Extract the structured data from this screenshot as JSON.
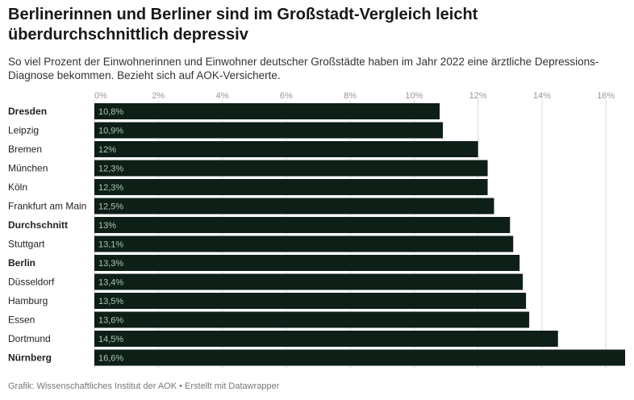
{
  "title": "Berlinerinnen und Berliner sind im Großstadt-Vergleich leicht überdurchschnittlich depressiv",
  "subtitle": "So viel Prozent der Einwohnerinnen und Einwohner deutscher Großstädte haben im Jahr 2022 eine ärztliche Depressions-Diagnose bekommen. Bezieht sich auf AOK-Versicherte.",
  "footer": "Grafik: Wissenschaftliches Institut der AOK • Erstellt mit Datawrapper",
  "colors": {
    "bar": "#0d1f17",
    "value_label": "#a9c8b4",
    "grid": "#d9d9d9",
    "axis_label": "#999999",
    "category_label": "#222222"
  },
  "chart_data": {
    "type": "bar",
    "orientation": "horizontal",
    "categories": [
      "Dresden",
      "Leipzig",
      "Bremen",
      "München",
      "Köln",
      "Frankfurt am Main",
      "Durchschnitt",
      "Stuttgart",
      "Berlin",
      "Düsseldorf",
      "Hamburg",
      "Essen",
      "Dortmund",
      "Nürnberg"
    ],
    "values": [
      10.8,
      10.9,
      12,
      12.3,
      12.3,
      12.5,
      13,
      13.1,
      13.3,
      13.4,
      13.5,
      13.6,
      14.5,
      16.6
    ],
    "value_labels": [
      "10,8%",
      "10,9%",
      "12%",
      "12,3%",
      "12,3%",
      "12,5%",
      "13%",
      "13,1%",
      "13,3%",
      "13,4%",
      "13,5%",
      "13,6%",
      "14,5%",
      "16,6%"
    ],
    "bold_categories": [
      "Dresden",
      "Durchschnitt",
      "Berlin",
      "Nürnberg"
    ],
    "xlim": [
      0,
      16.6
    ],
    "xticks": [
      0,
      2,
      4,
      6,
      8,
      10,
      12,
      14,
      16
    ],
    "xtick_labels": [
      "0%",
      "2%",
      "4%",
      "6%",
      "8%",
      "10%",
      "12%",
      "14%",
      "16%"
    ],
    "grid": true,
    "xlabel": "",
    "ylabel": ""
  }
}
